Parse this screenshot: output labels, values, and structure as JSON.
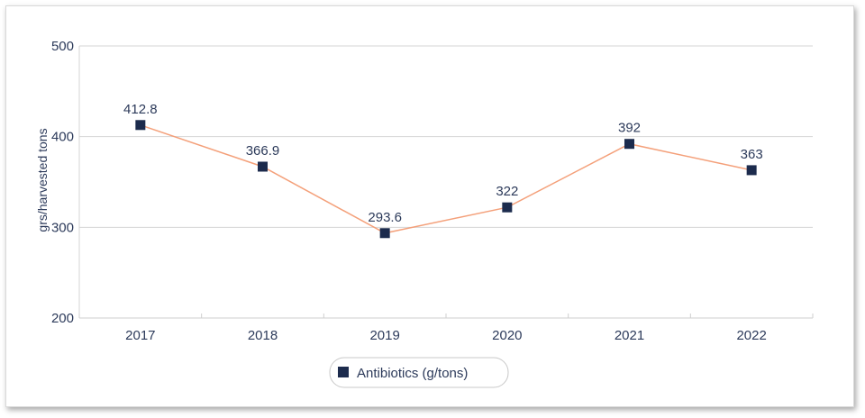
{
  "chart_data": {
    "type": "line",
    "categories": [
      "2017",
      "2018",
      "2019",
      "2020",
      "2021",
      "2022"
    ],
    "series": [
      {
        "name": "Antibiotics (g/tons)",
        "values": [
          412.8,
          366.9,
          293.6,
          322,
          392,
          363
        ]
      }
    ],
    "data_labels": [
      "412.8",
      "366.9",
      "293.6",
      "322",
      "392",
      "363"
    ],
    "ylabel": "grs/harvested tons",
    "ylim": [
      200,
      500
    ],
    "yticks": [
      200,
      300,
      400,
      500
    ],
    "grid": true,
    "legend_position": "bottom-center",
    "colors": {
      "line": "#f4a07a",
      "marker": "#1c2b4d",
      "text": "#2c3a5a",
      "grid": "#d4d4d4"
    }
  }
}
